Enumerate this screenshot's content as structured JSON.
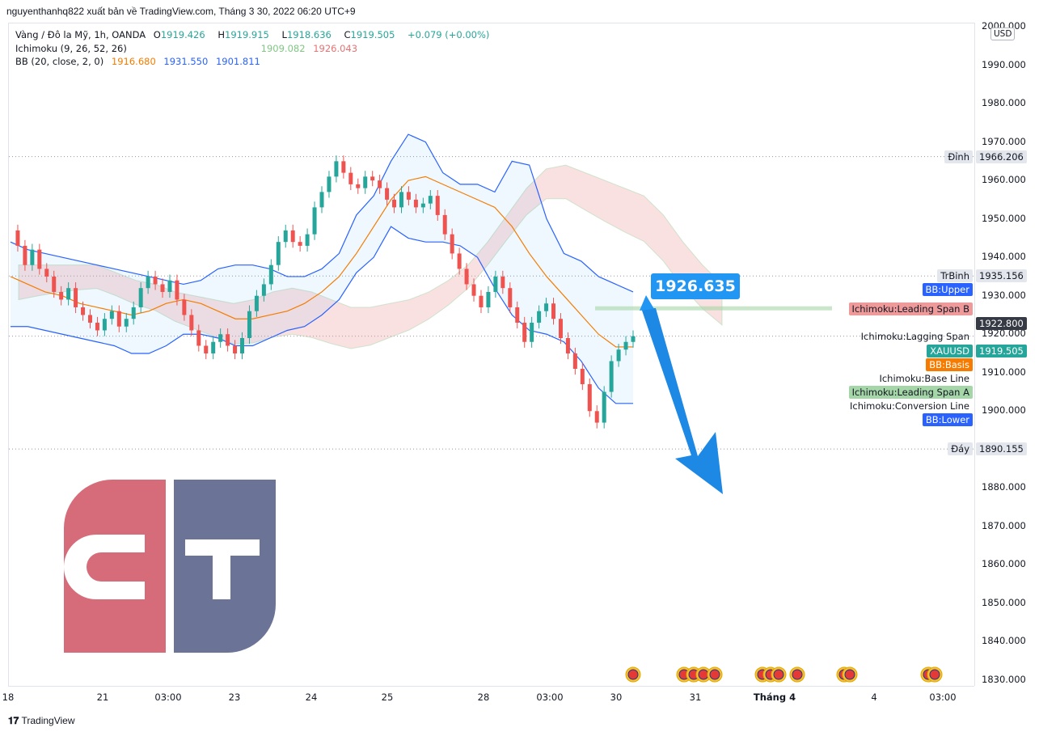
{
  "header": {
    "published_by": "nguyenthanhq822 xuất bản về TradingView.com, Tháng 3 30, 2022 06:20 UTC+9"
  },
  "legend": {
    "symbol": "Vàng / Đô la Mỹ, 1h, OANDA",
    "o_label": "O",
    "o_value": "1919.426",
    "h_label": "H",
    "h_value": "1919.915",
    "l_label": "L",
    "l_value": "1918.636",
    "c_label": "C",
    "c_value": "1919.505",
    "change": "+0.079 (+0.00%)",
    "ichimoku_name": "Ichimoku (9, 26, 52, 26)",
    "ichimoku_a": "1909.082",
    "ichimoku_b": "1926.043",
    "bb_name": "BB (20, close, 2, 0)",
    "bb_basis": "1916.680",
    "bb_upper": "1931.550",
    "bb_lower": "1901.811"
  },
  "currency": "USD",
  "callout_value": "1926.635",
  "footer_brand": "TradingView",
  "colors": {
    "up": "#26a69a",
    "down": "#ef5350",
    "bb_band": "#2962ff",
    "bb_basis": "#f57c00",
    "cloud_green": "#a5d6a7",
    "cloud_red": "#ef9a9a",
    "arrow": "#1e88e5",
    "logo_red": "#d66c79",
    "logo_blue": "#6b7496"
  },
  "price_tags": [
    {
      "label": "Đỉnh",
      "value": "1966.206"
    },
    {
      "label": "TrBinh",
      "value": "1935.156"
    },
    {
      "label": "BB:Upper",
      "value": ""
    },
    {
      "label": "Ichimoku:Leading Span B",
      "value": ""
    },
    {
      "label": "",
      "value": "1922.800"
    },
    {
      "label": "Ichimoku:Lagging Span",
      "value": ""
    },
    {
      "label": "XAUUSD",
      "value": "1919.505"
    },
    {
      "label": "BB:Basis",
      "value": ""
    },
    {
      "label": "Ichimoku:Base Line",
      "value": ""
    },
    {
      "label": "Ichimoku:Leading Span A",
      "value": ""
    },
    {
      "label": "Ichimoku:Conversion Line",
      "value": ""
    },
    {
      "label": "BB:Lower",
      "value": ""
    },
    {
      "label": "Đáy",
      "value": "1890.155"
    }
  ],
  "chart_data": {
    "type": "line",
    "title": "Vàng / Đô la Mỹ, 1h, OANDA",
    "y_ticks": [
      2000,
      1990,
      1980,
      1970,
      1960,
      1950,
      1940,
      1930,
      1920,
      1910,
      1900,
      1890,
      1880,
      1870,
      1860,
      1850,
      1840,
      1830
    ],
    "y_tick_labels": [
      "2000.000",
      "1990.000",
      "1980.000",
      "1970.000",
      "1960.000",
      "1950.000",
      "1940.000",
      "1930.000",
      "1920.000",
      "1910.000",
      "1900.000",
      "1890.000",
      "1880.000",
      "1870.000",
      "1860.000",
      "1850.000",
      "1840.000",
      "1830.000"
    ],
    "ylim": [
      1829,
      2001
    ],
    "x_tick_labels": [
      "18",
      "21",
      "03:00",
      "23",
      "24",
      "25",
      "28",
      "03:00",
      "30",
      "31",
      "Tháng 4",
      "4",
      "03:00"
    ],
    "price_series": {
      "name": "XAUUSD",
      "values": [
        1947,
        1943,
        1938,
        1942,
        1937,
        1935,
        1931,
        1929,
        1932,
        1927,
        1925,
        1923,
        1921,
        1924,
        1926,
        1922,
        1924,
        1927,
        1932,
        1935,
        1933,
        1931,
        1934,
        1929,
        1925,
        1921,
        1917,
        1915,
        1918,
        1920,
        1917,
        1915,
        1919,
        1926,
        1930,
        1933,
        1938,
        1944,
        1947,
        1944,
        1943,
        1946,
        1953,
        1957,
        1961,
        1965,
        1962,
        1959,
        1958,
        1961,
        1960,
        1958,
        1955,
        1953,
        1957,
        1955,
        1953,
        1954,
        1956,
        1951,
        1946,
        1941,
        1937,
        1933,
        1930,
        1927,
        1931,
        1935,
        1932,
        1927,
        1923,
        1918,
        1923,
        1926,
        1928,
        1924,
        1919,
        1915,
        1911,
        1907,
        1900,
        1897,
        1905,
        1913,
        1916,
        1918,
        1919.5
      ]
    },
    "bb_upper": [
      1944,
      1942,
      1941,
      1940,
      1939,
      1938,
      1937,
      1936,
      1935,
      1934,
      1933,
      1934,
      1937,
      1938,
      1938,
      1937,
      1935,
      1935,
      1937,
      1941,
      1951,
      1956,
      1965,
      1972,
      1970,
      1962,
      1959,
      1959,
      1957,
      1965,
      1964,
      1950,
      1941,
      1939,
      1935,
      1933,
      1931
    ],
    "bb_lower": [
      1922,
      1922,
      1921,
      1920,
      1919,
      1918,
      1917,
      1915,
      1915,
      1917,
      1920,
      1920,
      1919,
      1917,
      1917,
      1919,
      1921,
      1922,
      1925,
      1929,
      1936,
      1940,
      1948,
      1945,
      1944,
      1944,
      1943,
      1940,
      1932,
      1925,
      1921,
      1920,
      1918,
      1913,
      1906,
      1902,
      1902
    ],
    "bb_basis": [
      1935,
      1933,
      1931,
      1930,
      1928,
      1927,
      1926,
      1925,
      1926,
      1928,
      1929,
      1928,
      1926,
      1924,
      1924,
      1925,
      1926,
      1928,
      1931,
      1935,
      1941,
      1948,
      1955,
      1960,
      1961,
      1959,
      1957,
      1955,
      1953,
      1948,
      1941,
      1935,
      1930,
      1925,
      1920,
      1916.7,
      1916.7
    ],
    "annotation_value": "1926.635",
    "projected_arrow": "down"
  }
}
